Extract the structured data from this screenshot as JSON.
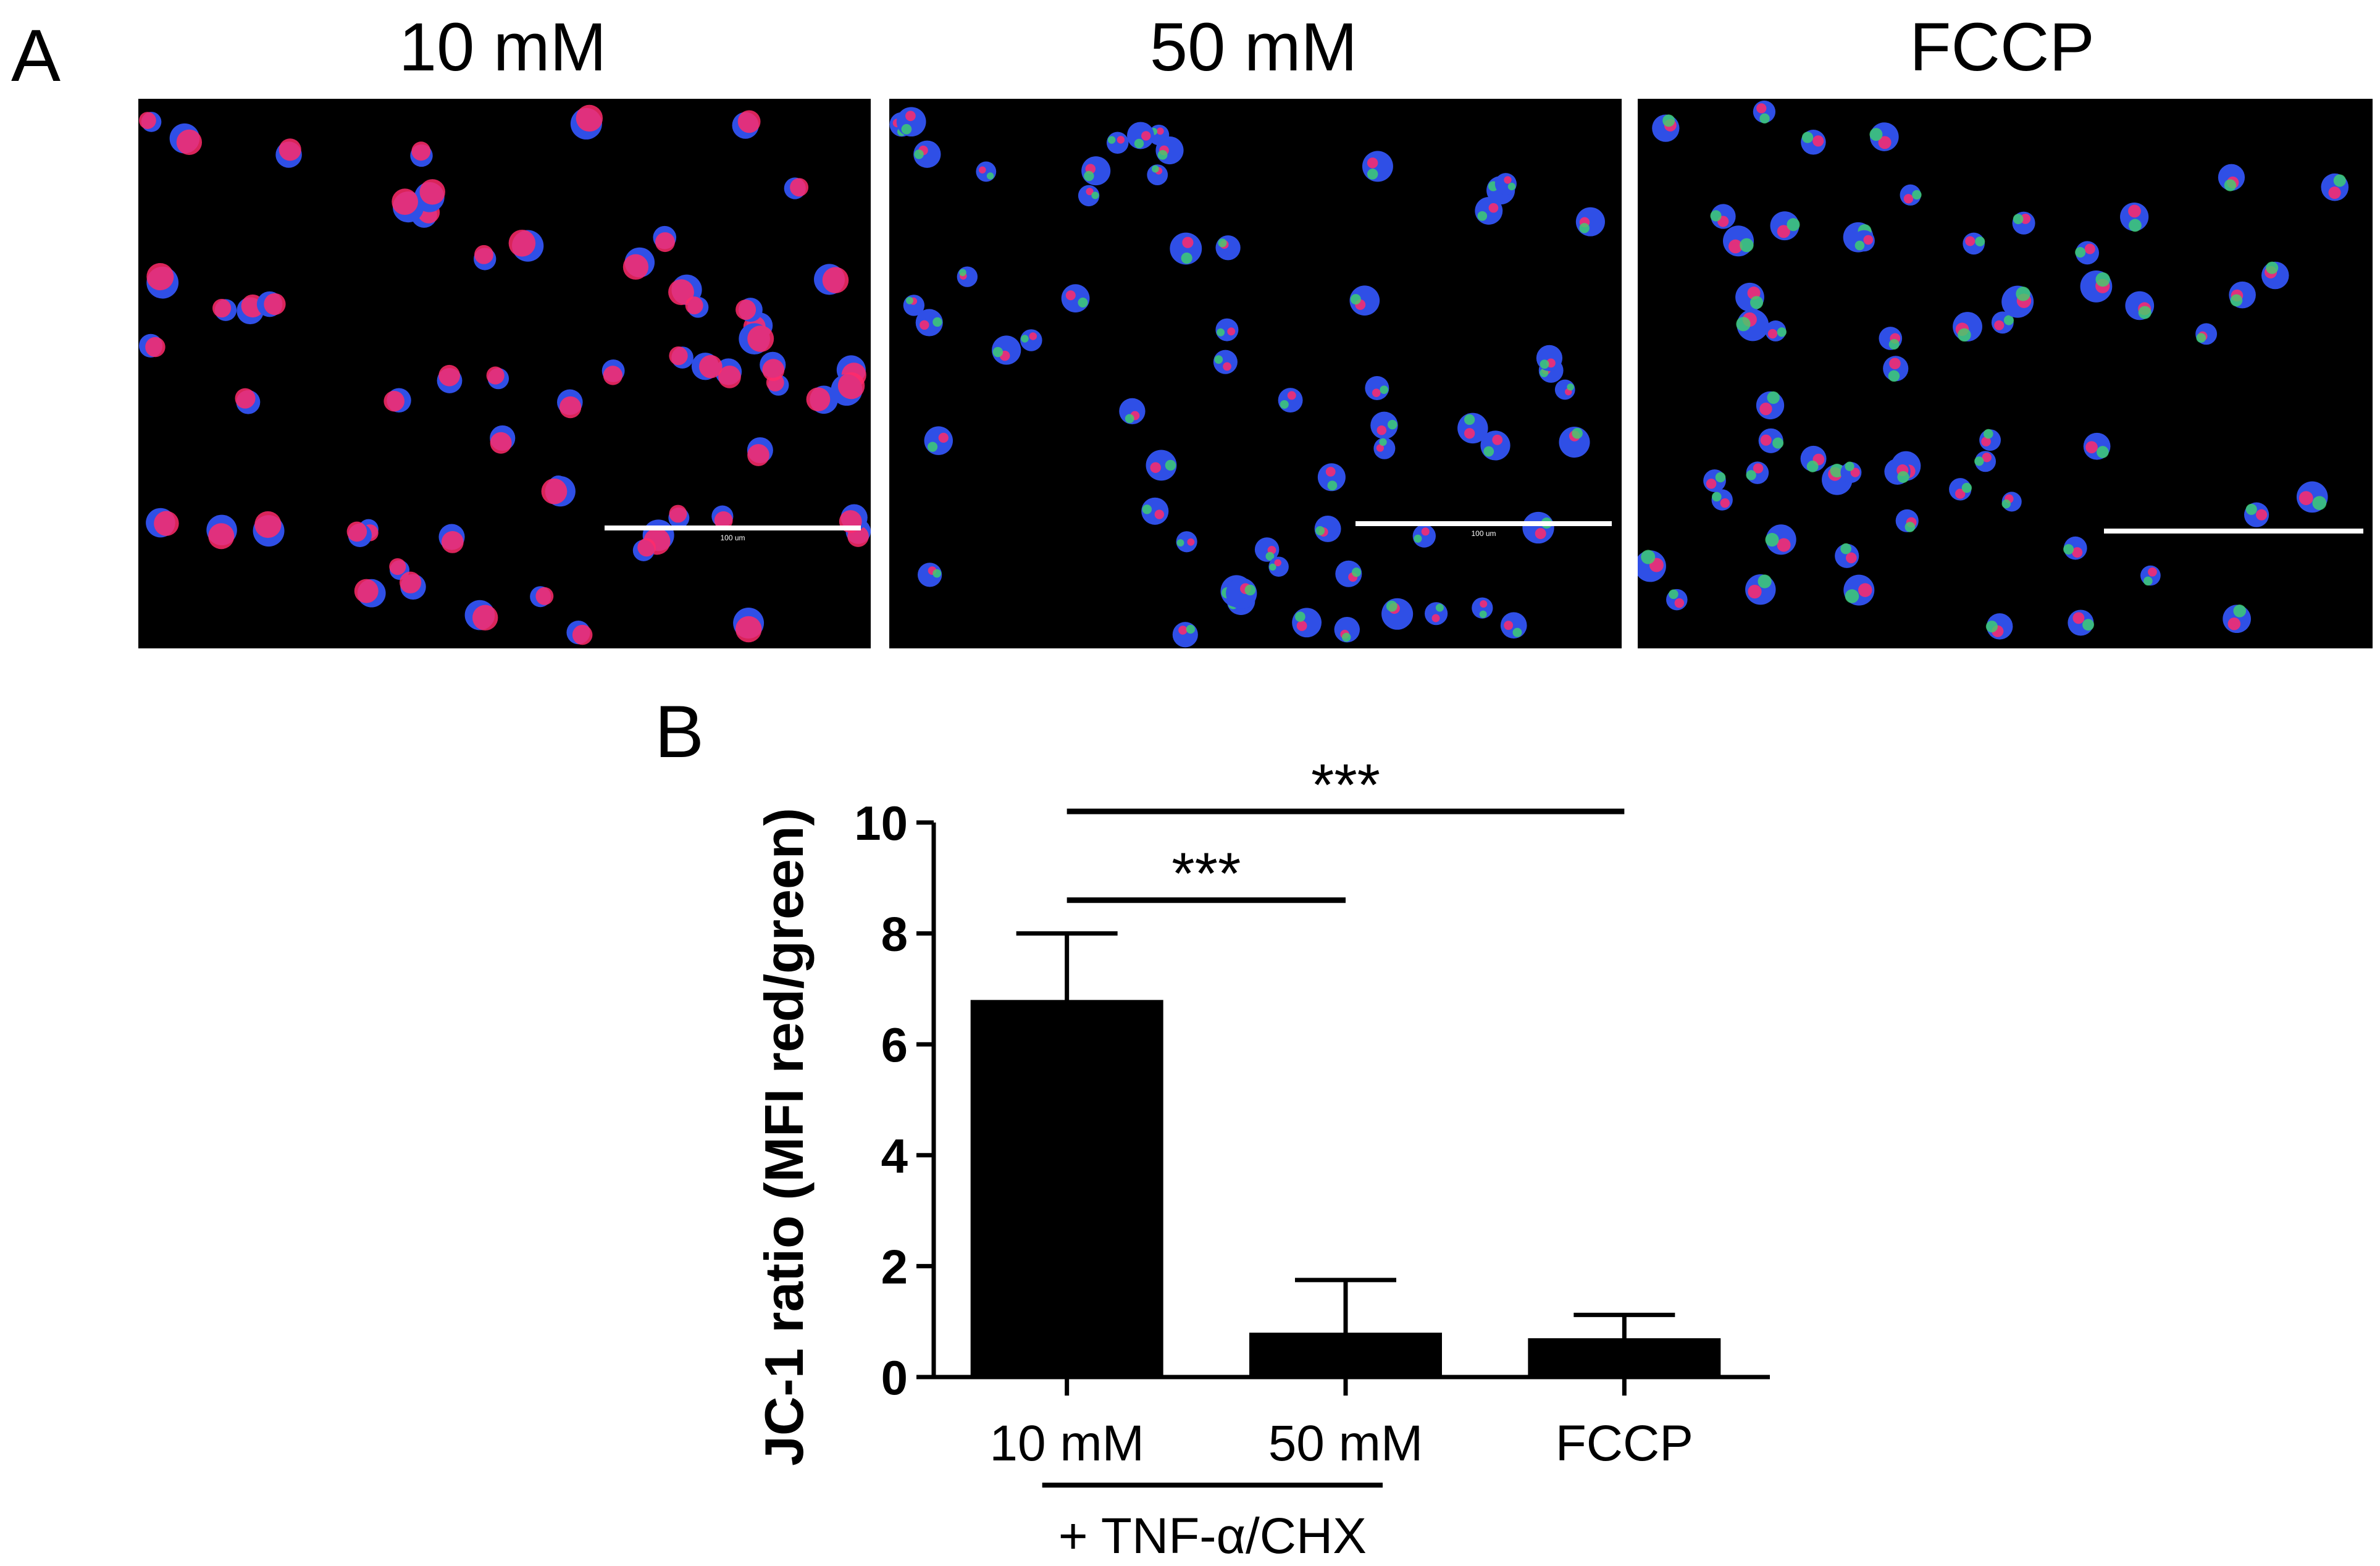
{
  "panel_a": {
    "letter": "A",
    "images": [
      {
        "title": "10 mM",
        "scale_text": "100 um"
      },
      {
        "title": "50 mM",
        "scale_text": "100 um"
      },
      {
        "title": "FCCP",
        "scale_text": ""
      }
    ]
  },
  "panel_b": {
    "letter": "B"
  },
  "colors": {
    "bar": "#000000",
    "nucleus": "#2f4fe6",
    "red_stain": "#ff2a6a",
    "green_stain": "#3fd36b"
  },
  "chart_data": {
    "type": "bar",
    "categories": [
      "10 mM",
      "50 mM",
      "FCCP"
    ],
    "values": [
      6.8,
      0.8,
      0.7
    ],
    "errors": [
      1.2,
      0.95,
      0.42
    ],
    "ylabel": "JC-1 ratio (MFI red/green)",
    "xlabel": "",
    "ylim": [
      0,
      10
    ],
    "yticks": [
      0,
      2,
      4,
      6,
      8,
      10
    ],
    "grid": false,
    "significance": [
      {
        "from": "10 mM",
        "to": "50 mM",
        "label": "***",
        "y": 8.6
      },
      {
        "from": "10 mM",
        "to": "FCCP",
        "label": "***",
        "y": 10.2
      }
    ],
    "group_annotation": {
      "categories": [
        "10 mM",
        "50 mM"
      ],
      "label": "+ TNF-α/CHX"
    }
  }
}
